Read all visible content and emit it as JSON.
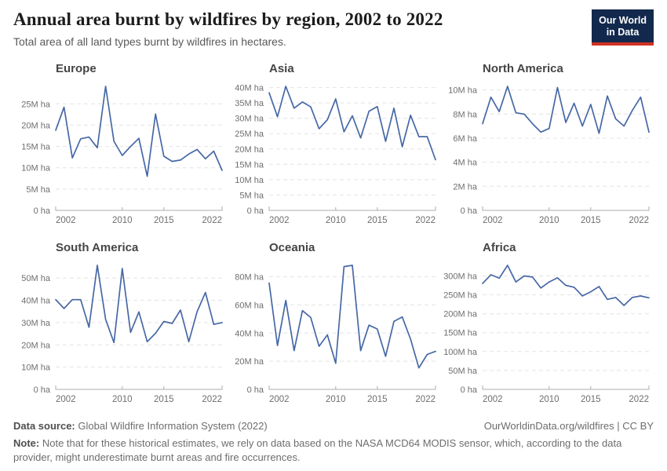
{
  "header": {
    "title": "Annual area burnt by wildfires by region, 2002 to 2022",
    "subtitle": "Total area of all land types burnt by wildfires in hectares.",
    "logo_line1": "Our World",
    "logo_line2": "in Data"
  },
  "colors": {
    "line": "#4668a5",
    "grid": "#e4e4e4",
    "axis": "#adadad",
    "tick_text": "#6e6e6e",
    "logo_bg": "#12294d",
    "logo_accent": "#d13223"
  },
  "chart_data": {
    "type": "line",
    "unit": "hectares",
    "years": [
      2002,
      2003,
      2004,
      2005,
      2006,
      2007,
      2008,
      2009,
      2010,
      2011,
      2012,
      2013,
      2014,
      2015,
      2016,
      2017,
      2018,
      2019,
      2020,
      2021,
      2022
    ],
    "x_ticks": [
      {
        "label": "2002",
        "year": 2002,
        "anchor": "start",
        "tick": false
      },
      {
        "label": "2010",
        "year": 2010,
        "anchor": "middle",
        "tick": true
      },
      {
        "label": "2015",
        "year": 2015,
        "anchor": "middle",
        "tick": true
      },
      {
        "label": "2022",
        "year": 2022,
        "anchor": "end",
        "tick": false
      }
    ],
    "charts": [
      {
        "title": "Europe",
        "ymax": 29.1,
        "ytick_values": [
          0,
          5,
          10,
          15,
          20,
          25
        ],
        "ytick_labels": [
          "0 ha",
          "5M ha",
          "10M ha",
          "15M ha",
          "20M ha",
          "25M ha"
        ],
        "values": [
          18.8,
          24.2,
          12.3,
          16.8,
          17.2,
          14.7,
          29.1,
          16.2,
          12.9,
          15.0,
          16.9,
          8.0,
          22.6,
          12.7,
          11.5,
          11.8,
          13.2,
          14.3,
          12.1,
          13.9,
          9.4
        ]
      },
      {
        "title": "Asia",
        "ymax": 40.4,
        "ytick_values": [
          0,
          5,
          10,
          15,
          20,
          25,
          30,
          35,
          40
        ],
        "ytick_labels": [
          "0 ha",
          "5M ha",
          "10M ha",
          "15M ha",
          "20M ha",
          "25M ha",
          "30M ha",
          "35M ha",
          "40M ha"
        ],
        "values": [
          38.3,
          30.5,
          40.4,
          33.3,
          35.3,
          33.7,
          26.6,
          29.5,
          36.3,
          25.6,
          30.8,
          23.6,
          32.3,
          33.8,
          22.5,
          33.3,
          20.7,
          31.0,
          24.0,
          24.0,
          16.5
        ]
      },
      {
        "title": "North America",
        "ymax": 10.3,
        "ytick_values": [
          0,
          2,
          4,
          6,
          8,
          10
        ],
        "ytick_labels": [
          "0 ha",
          "2M ha",
          "4M ha",
          "6M ha",
          "8M ha",
          "10M ha"
        ],
        "values": [
          7.2,
          9.4,
          8.2,
          10.3,
          8.1,
          8.0,
          7.2,
          6.5,
          6.8,
          10.2,
          7.3,
          8.9,
          7.0,
          8.8,
          6.4,
          9.5,
          7.6,
          7.0,
          8.3,
          9.4,
          6.5
        ]
      },
      {
        "title": "South America",
        "ymax": 55.7,
        "ytick_values": [
          0,
          10,
          20,
          30,
          40,
          50
        ],
        "ytick_labels": [
          "0 ha",
          "10M ha",
          "20M ha",
          "30M ha",
          "40M ha",
          "50M ha"
        ],
        "values": [
          40.3,
          36.3,
          40.3,
          40.3,
          27.9,
          55.7,
          31.4,
          21.0,
          54.3,
          25.6,
          34.8,
          21.4,
          25.2,
          30.5,
          29.6,
          35.6,
          21.4,
          34.9,
          43.5,
          29.2,
          30.0
        ]
      },
      {
        "title": "Oceania",
        "ymax": 88.1,
        "ytick_values": [
          0,
          20,
          40,
          60,
          80
        ],
        "ytick_labels": [
          "0 ha",
          "20M ha",
          "40M ha",
          "60M ha",
          "80M ha"
        ],
        "values": [
          75.5,
          31.1,
          63.2,
          27.5,
          55.9,
          51.0,
          30.6,
          38.7,
          18.5,
          87.2,
          88.1,
          27.5,
          45.6,
          42.9,
          23.5,
          48.3,
          51.4,
          35.7,
          15.2,
          24.8,
          27.0
        ]
      },
      {
        "title": "Africa",
        "ymax": 328,
        "ytick_values": [
          0,
          50,
          100,
          150,
          200,
          250,
          300
        ],
        "ytick_labels": [
          "0 ha",
          "50M ha",
          "100M ha",
          "150M ha",
          "200M ha",
          "250M ha",
          "300M ha"
        ],
        "values": [
          280,
          303,
          294,
          328,
          284,
          300,
          297,
          268,
          284,
          295,
          275,
          270,
          247,
          258,
          272,
          238,
          243,
          222,
          243,
          247,
          242
        ]
      }
    ]
  },
  "footer": {
    "source_label": "Data source:",
    "source_value": "Global Wildfire Information System (2022)",
    "link": "OurWorldinData.org/wildfires",
    "separator": " | ",
    "license": "CC BY",
    "note_label": "Note:",
    "note_text": "Note that for these historical estimates, we rely on data based on the NASA MCD64 MODIS sensor, which, according to the data provider, might underestimate burnt areas and fire occurrences."
  }
}
